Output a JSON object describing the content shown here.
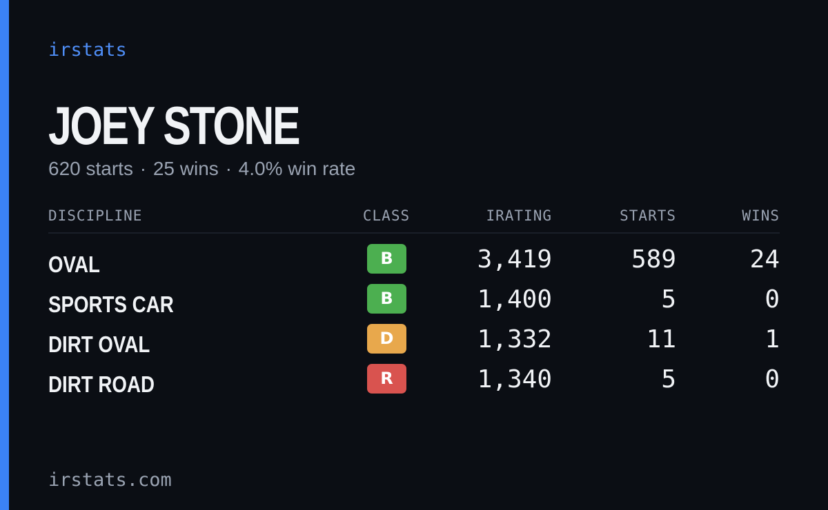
{
  "brand": "irstats",
  "player": {
    "name": "JOEY STONE",
    "summary": {
      "starts": "620 starts",
      "wins": "25 wins",
      "win_rate": "4.0% win rate",
      "separator": "·"
    }
  },
  "table": {
    "headers": {
      "discipline": "DISCIPLINE",
      "class": "CLASS",
      "irating": "IRATING",
      "starts": "STARTS",
      "wins": "WINS"
    },
    "rows": [
      {
        "discipline": "OVAL",
        "class": "B",
        "class_color": "#4caf50",
        "irating": "3,419",
        "starts": "589",
        "wins": "24"
      },
      {
        "discipline": "SPORTS CAR",
        "class": "B",
        "class_color": "#4caf50",
        "irating": "1,400",
        "starts": "5",
        "wins": "0"
      },
      {
        "discipline": "DIRT OVAL",
        "class": "D",
        "class_color": "#e8a84c",
        "irating": "1,332",
        "starts": "11",
        "wins": "1"
      },
      {
        "discipline": "DIRT ROAD",
        "class": "R",
        "class_color": "#d9534f",
        "irating": "1,340",
        "starts": "5",
        "wins": "0"
      }
    ]
  },
  "footer": {
    "url": "irstats.com"
  },
  "colors": {
    "background": "#0b0e14",
    "accent": "#3b82f6",
    "brand_text": "#4f8ef7",
    "muted_text": "#9aa3b2",
    "primary_text": "#f1f3f6"
  }
}
